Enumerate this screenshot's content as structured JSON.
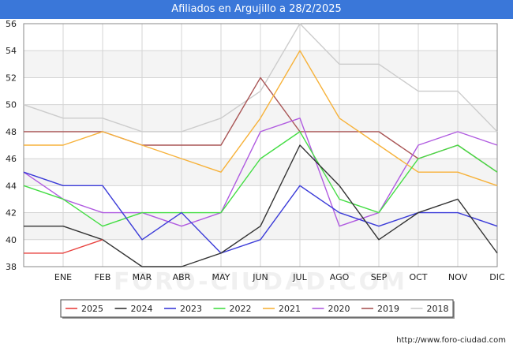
{
  "chart_data": {
    "type": "line",
    "title": "Afiliados en Argujillo a 28/2/2025",
    "xlabel": "",
    "ylabel": "",
    "categories": [
      "",
      "ENE",
      "FEB",
      "MAR",
      "ABR",
      "MAY",
      "JUN",
      "JUL",
      "AGO",
      "SEP",
      "OCT",
      "NOV",
      "DIC"
    ],
    "ylim": [
      38,
      56
    ],
    "yticks": [
      38,
      40,
      42,
      44,
      46,
      48,
      50,
      52,
      54,
      56
    ],
    "grid": true,
    "legend_position": "bottom",
    "watermark": "FORO-CIUDAD.COM",
    "series": [
      {
        "name": "2025",
        "color": "#e8413e",
        "values": [
          39,
          39,
          40,
          null,
          null,
          null,
          null,
          null,
          null,
          null,
          null,
          null,
          null
        ]
      },
      {
        "name": "2024",
        "color": "#333333",
        "values": [
          41,
          41,
          40,
          38,
          38,
          39,
          41,
          47,
          44,
          40,
          42,
          43,
          39
        ]
      },
      {
        "name": "2023",
        "color": "#3b3bd8",
        "values": [
          45,
          44,
          44,
          40,
          42,
          39,
          40,
          44,
          42,
          41,
          42,
          42,
          41
        ]
      },
      {
        "name": "2022",
        "color": "#44dd44",
        "values": [
          44,
          43,
          41,
          42,
          42,
          42,
          46,
          48,
          43,
          42,
          46,
          47,
          45
        ]
      },
      {
        "name": "2021",
        "color": "#f7b23a",
        "values": [
          47,
          47,
          48,
          47,
          46,
          45,
          49,
          54,
          49,
          47,
          45,
          45,
          44
        ]
      },
      {
        "name": "2020",
        "color": "#b05be0",
        "values": [
          45,
          43,
          42,
          42,
          41,
          42,
          48,
          49,
          41,
          42,
          47,
          48,
          47
        ]
      },
      {
        "name": "2019",
        "color": "#a95555",
        "values": [
          48,
          48,
          48,
          47,
          47,
          47,
          52,
          48,
          48,
          48,
          46,
          47,
          45
        ]
      },
      {
        "name": "2018",
        "color": "#cccccc",
        "values": [
          50,
          49,
          49,
          48,
          48,
          49,
          51,
          56,
          53,
          53,
          51,
          51,
          48
        ]
      }
    ]
  },
  "footer": {
    "url": "http://www.foro-ciudad.com"
  }
}
